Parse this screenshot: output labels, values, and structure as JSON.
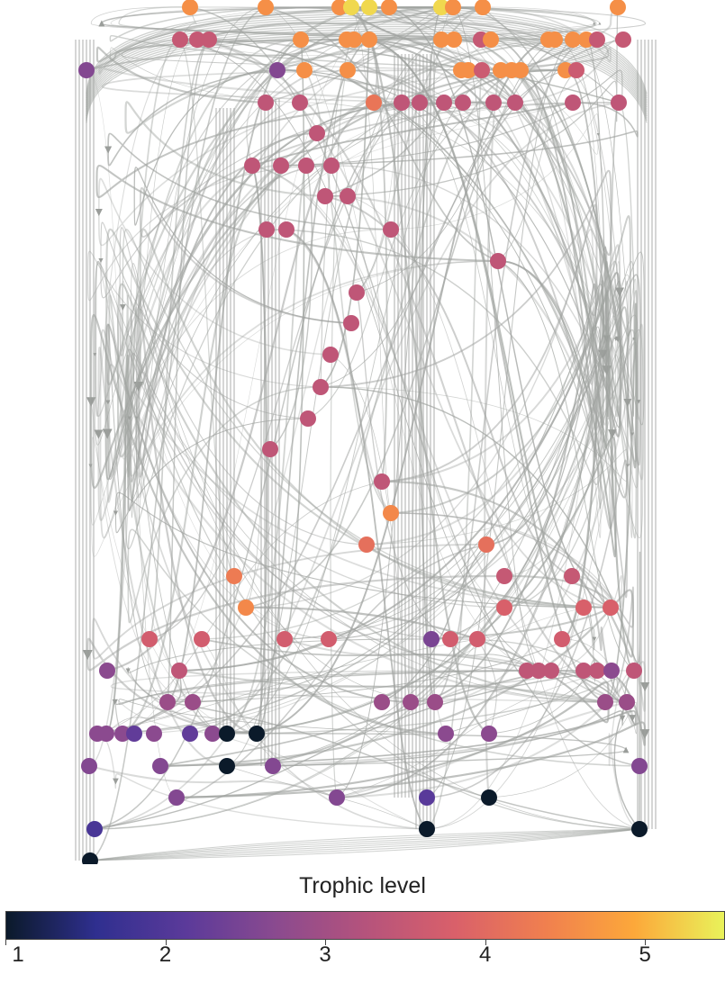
{
  "colorbar": {
    "title": "Trophic level",
    "ticks": [
      "1",
      "2",
      "3",
      "4",
      "5"
    ],
    "min": 1,
    "max": 5.5,
    "colors": [
      "#0b1a2a",
      "#2f2f8f",
      "#5b3a9a",
      "#8a4a8f",
      "#b5537c",
      "#d9606a",
      "#f07f4f",
      "#fca83a",
      "#e9f25a"
    ]
  },
  "edge_color": "#a0a3a0",
  "nodes": [
    {
      "tl": 1.0
    },
    {
      "tl": 1.0
    },
    {
      "tl": 1.0
    },
    {
      "tl": 1.0
    },
    {
      "tl": 1.0
    },
    {
      "tl": 1.0
    },
    {
      "tl": 2.2
    },
    {
      "tl": 2.3
    },
    {
      "tl": 2.4
    },
    {
      "tl": 2.6
    },
    {
      "tl": 2.6
    },
    {
      "tl": 2.7
    },
    {
      "tl": 2.7
    },
    {
      "tl": 2.8
    },
    {
      "tl": 2.9
    },
    {
      "tl": 3.0
    },
    {
      "tl": 3.3
    },
    {
      "tl": 3.4
    },
    {
      "tl": 3.6
    },
    {
      "tl": 3.8
    },
    {
      "tl": 4.1
    },
    {
      "tl": 4.5
    },
    {
      "tl": 5.2
    }
  ]
}
